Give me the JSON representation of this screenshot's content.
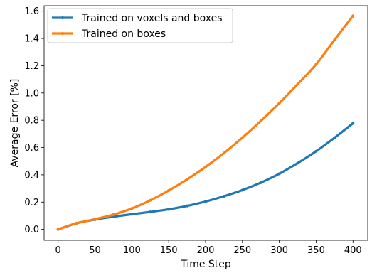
{
  "chart_data": {
    "type": "line",
    "title": "",
    "xlabel": "Time Step",
    "ylabel": "Average Error [%]",
    "xlim": [
      -19,
      420
    ],
    "ylim": [
      -0.08,
      1.64
    ],
    "xticks": [
      0,
      50,
      100,
      150,
      200,
      250,
      300,
      350,
      400
    ],
    "yticks": [
      0.0,
      0.2,
      0.4,
      0.6,
      0.8,
      1.0,
      1.2,
      1.4,
      1.6
    ],
    "xtick_labels": [
      "0",
      "50",
      "100",
      "150",
      "200",
      "250",
      "300",
      "350",
      "400"
    ],
    "ytick_labels": [
      "0.0",
      "0.2",
      "0.4",
      "0.6",
      "0.8",
      "1.0",
      "1.2",
      "1.4",
      "1.6"
    ],
    "grid": false,
    "legend_position": "top-left",
    "x": [
      0,
      25,
      50,
      75,
      100,
      125,
      150,
      175,
      200,
      225,
      250,
      275,
      300,
      325,
      350,
      375,
      400
    ],
    "series": [
      {
        "name": "Trained on voxels and boxes",
        "color": "#1f77b4",
        "values": [
          0.0,
          0.045,
          0.072,
          0.093,
          0.111,
          0.128,
          0.147,
          0.172,
          0.204,
          0.243,
          0.288,
          0.343,
          0.408,
          0.486,
          0.573,
          0.672,
          0.778
        ]
      },
      {
        "name": "Trained on boxes",
        "color": "#ff7f0e",
        "values": [
          0.0,
          0.045,
          0.075,
          0.108,
          0.153,
          0.213,
          0.285,
          0.367,
          0.458,
          0.56,
          0.673,
          0.795,
          0.925,
          1.065,
          1.21,
          1.39,
          1.565
        ]
      }
    ]
  }
}
